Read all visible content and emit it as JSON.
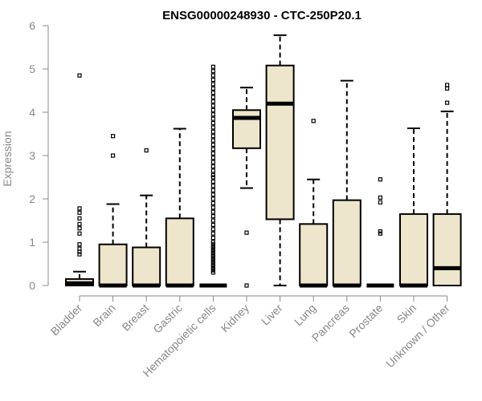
{
  "chart_data": {
    "type": "boxplot",
    "title": "ENSG00000248930 - CTC-250P20.1",
    "xlabel": "",
    "ylabel": "Expression",
    "ylim": [
      0,
      6
    ],
    "yticks": [
      0,
      1,
      2,
      3,
      4,
      5,
      6
    ],
    "box_fill": "#ede6cc",
    "categories": [
      "Bladder",
      "Brain",
      "Breast",
      "Gastric",
      "Hematopoietic cells",
      "Kidney",
      "Liver",
      "Lung",
      "Pancreas",
      "Prostate",
      "Skin",
      "Unknown / Other"
    ],
    "boxes": [
      {
        "q1": 0,
        "median": 0.05,
        "q3": 0.15,
        "whisker_low": 0,
        "whisker_high": 0.32,
        "outliers": [
          4.85,
          1.78,
          1.68,
          1.55,
          1.42,
          1.32,
          1.2,
          0.95,
          0.85,
          0.78,
          0.72
        ]
      },
      {
        "q1": 0,
        "median": 0,
        "q3": 0.95,
        "whisker_low": 0,
        "whisker_high": 1.88,
        "outliers": [
          3.45,
          3.0
        ]
      },
      {
        "q1": 0,
        "median": 0,
        "q3": 0.88,
        "whisker_low": 0,
        "whisker_high": 2.08,
        "outliers": [
          3.12
        ]
      },
      {
        "q1": 0,
        "median": 0,
        "q3": 1.55,
        "whisker_low": 0,
        "whisker_high": 3.62,
        "outliers": []
      },
      {
        "q1": 0,
        "median": 0,
        "q3": 0,
        "whisker_low": 0,
        "whisker_high": 0,
        "outliers": [
          5.05,
          4.95,
          4.85,
          4.75,
          4.65,
          4.55,
          4.45,
          4.35,
          4.25,
          4.15,
          4.05,
          3.95,
          3.85,
          3.75,
          3.65,
          3.55,
          3.45,
          3.35,
          3.25,
          3.15,
          3.05,
          2.95,
          2.85,
          2.75,
          2.65,
          2.55,
          2.5,
          2.4,
          2.3,
          2.2,
          2.1,
          2.0,
          1.9,
          1.8,
          1.7,
          1.6,
          1.5,
          1.4,
          1.3,
          1.2,
          1.1,
          1.0,
          0.95,
          0.9,
          0.85,
          0.8,
          0.75,
          0.7,
          0.65,
          0.6,
          0.55,
          0.5,
          0.45,
          0.4,
          0.35,
          0.3
        ]
      },
      {
        "q1": 3.17,
        "median": 3.87,
        "q3": 4.05,
        "whisker_low": 2.25,
        "whisker_high": 4.57,
        "outliers": [
          1.22,
          0
        ]
      },
      {
        "q1": 1.53,
        "median": 4.2,
        "q3": 5.08,
        "whisker_low": 0,
        "whisker_high": 5.78,
        "outliers": []
      },
      {
        "q1": 0,
        "median": 0,
        "q3": 1.42,
        "whisker_low": 0,
        "whisker_high": 2.45,
        "outliers": [
          3.8
        ]
      },
      {
        "q1": 0,
        "median": 0,
        "q3": 1.97,
        "whisker_low": 0,
        "whisker_high": 4.73,
        "outliers": []
      },
      {
        "q1": 0,
        "median": 0,
        "q3": 0,
        "whisker_low": 0,
        "whisker_high": 0,
        "outliers": [
          2.45,
          2.03,
          1.92,
          1.25,
          1.2
        ]
      },
      {
        "q1": 0,
        "median": 0,
        "q3": 1.65,
        "whisker_low": 0,
        "whisker_high": 3.63,
        "outliers": []
      },
      {
        "q1": 0,
        "median": 0.4,
        "q3": 1.65,
        "whisker_low": 0,
        "whisker_high": 4.02,
        "outliers": [
          4.63,
          4.55,
          4.22
        ]
      }
    ]
  }
}
